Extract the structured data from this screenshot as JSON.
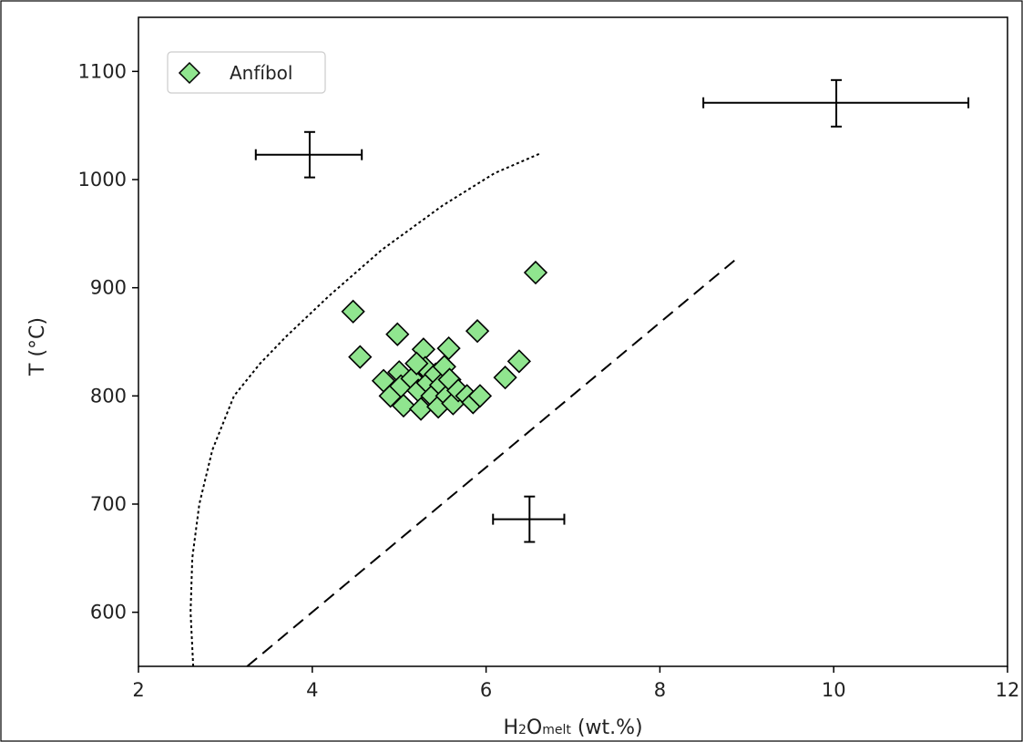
{
  "chart_data": {
    "type": "scatter",
    "xlabel_main": "H",
    "xlabel_sub1": "2",
    "xlabel_mid": "O",
    "xlabel_sub2": "melt",
    "xlabel_tail": " (wt.%)",
    "ylabel": "T (°C)",
    "xlim": [
      2,
      12
    ],
    "ylim": [
      550,
      1150
    ],
    "xticks": [
      "2",
      "4",
      "6",
      "8",
      "10",
      "12"
    ],
    "yticks": [
      "600",
      "700",
      "800",
      "900",
      "1000",
      "1100"
    ],
    "legend": {
      "position": "top-left",
      "label": "Anfíbol"
    },
    "colors": {
      "marker_fill": "#90e58f",
      "marker_edge": "#000000",
      "line": "#000000"
    },
    "series": [
      {
        "name": "Anfíbol",
        "points": [
          {
            "x": 4.47,
            "y": 878
          },
          {
            "x": 4.55,
            "y": 836
          },
          {
            "x": 4.98,
            "y": 857
          },
          {
            "x": 5.28,
            "y": 843
          },
          {
            "x": 5.57,
            "y": 844
          },
          {
            "x": 5.9,
            "y": 860
          },
          {
            "x": 6.57,
            "y": 914
          },
          {
            "x": 6.22,
            "y": 817
          },
          {
            "x": 6.38,
            "y": 832
          },
          {
            "x": 4.82,
            "y": 814
          },
          {
            "x": 4.9,
            "y": 800
          },
          {
            "x": 5.0,
            "y": 822
          },
          {
            "x": 5.02,
            "y": 809
          },
          {
            "x": 5.05,
            "y": 791
          },
          {
            "x": 5.15,
            "y": 816
          },
          {
            "x": 5.22,
            "y": 805
          },
          {
            "x": 5.25,
            "y": 788
          },
          {
            "x": 5.3,
            "y": 826
          },
          {
            "x": 5.33,
            "y": 812
          },
          {
            "x": 5.38,
            "y": 800
          },
          {
            "x": 5.42,
            "y": 820
          },
          {
            "x": 5.45,
            "y": 790
          },
          {
            "x": 5.48,
            "y": 810
          },
          {
            "x": 5.52,
            "y": 827
          },
          {
            "x": 5.55,
            "y": 800
          },
          {
            "x": 5.58,
            "y": 815
          },
          {
            "x": 5.62,
            "y": 793
          },
          {
            "x": 5.68,
            "y": 805
          },
          {
            "x": 5.78,
            "y": 800
          },
          {
            "x": 5.85,
            "y": 794
          },
          {
            "x": 5.93,
            "y": 800
          },
          {
            "x": 5.2,
            "y": 830
          }
        ]
      }
    ],
    "error_bars": [
      {
        "x": 3.97,
        "y": 1023,
        "x_low": 3.35,
        "x_high": 4.57,
        "y_low": 1002,
        "y_high": 1044
      },
      {
        "x": 10.03,
        "y": 1071,
        "x_low": 8.5,
        "x_high": 11.55,
        "y_low": 1049,
        "y_high": 1092
      },
      {
        "x": 6.5,
        "y": 686,
        "x_low": 6.08,
        "x_high": 6.9,
        "y_low": 665,
        "y_high": 707
      }
    ],
    "curves": [
      {
        "style": "dotted",
        "points": [
          [
            2.63,
            550
          ],
          [
            2.6,
            600
          ],
          [
            2.62,
            650
          ],
          [
            2.7,
            700
          ],
          [
            2.85,
            750
          ],
          [
            3.1,
            800
          ],
          [
            3.4,
            830
          ],
          [
            3.7,
            855
          ],
          [
            4.2,
            893
          ],
          [
            4.8,
            935
          ],
          [
            5.5,
            976
          ],
          [
            6.1,
            1006
          ],
          [
            6.62,
            1024
          ]
        ]
      },
      {
        "style": "dashed",
        "points": [
          [
            3.25,
            550
          ],
          [
            8.9,
            928
          ]
        ]
      }
    ]
  }
}
